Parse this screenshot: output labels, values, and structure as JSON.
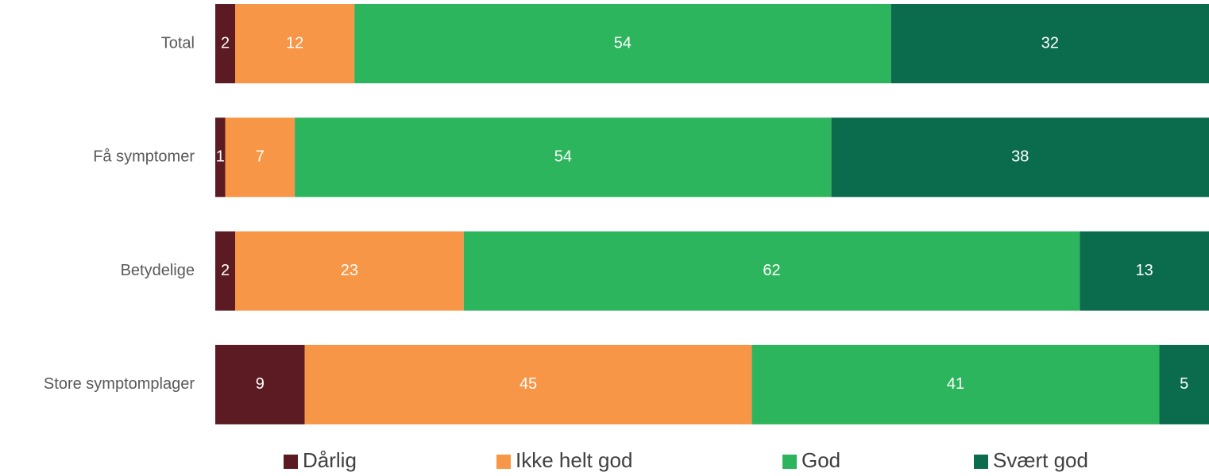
{
  "chart_data": {
    "type": "stacked-barh",
    "categories": [
      "Total",
      "Få symptomer",
      "Betydelige",
      "Store symptomplager"
    ],
    "series": [
      {
        "name": "Dårlig",
        "color": "#5c1b22",
        "values": [
          2,
          1,
          2,
          9
        ]
      },
      {
        "name": "Ikke helt god",
        "color": "#f79646",
        "values": [
          12,
          7,
          23,
          45
        ]
      },
      {
        "name": "God",
        "color": "#2db55d",
        "values": [
          54,
          54,
          62,
          41
        ]
      },
      {
        "name": "Svært god",
        "color": "#0b6b4d",
        "values": [
          32,
          38,
          13,
          5
        ]
      }
    ],
    "xlim": [
      0,
      100
    ],
    "legend": "bottom"
  }
}
